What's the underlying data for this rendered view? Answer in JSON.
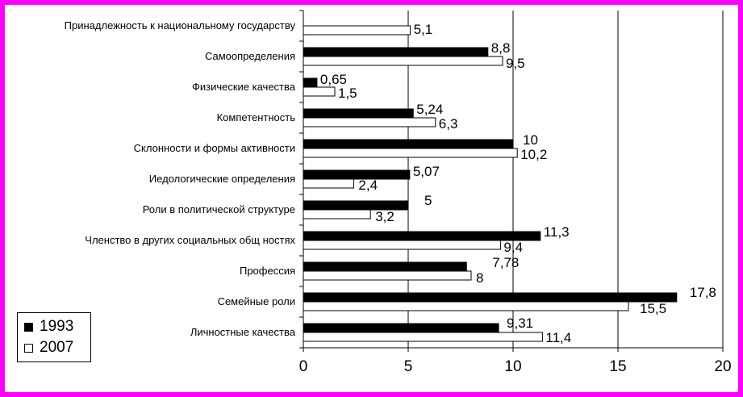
{
  "chart_data": {
    "type": "bar",
    "orientation": "horizontal",
    "categories": [
      "Принадлежность к национальному государству",
      "Самоопределения",
      "Физические качества",
      "Компетентность",
      "Склонности и формы активности",
      "Иедологические определения",
      "Роли в политической структуре",
      "Членство в других социальных общ ностях",
      "Профессия",
      "Семейные роли",
      "Личностные качества"
    ],
    "series": [
      {
        "name": "1993",
        "color": "#000000",
        "values": [
          null,
          8.8,
          0.65,
          5.24,
          10,
          5.07,
          5,
          11.3,
          7.78,
          17.8,
          9.31
        ],
        "labels": [
          "",
          "8,8",
          "0,65",
          "5,24",
          "10",
          "5,07",
          "5",
          "11,3",
          "7,78",
          "17,8",
          "9,31"
        ]
      },
      {
        "name": "2007",
        "color": "#ffffff",
        "values": [
          5.1,
          9.5,
          1.5,
          6.3,
          10.2,
          2.4,
          3.2,
          9.4,
          8,
          15.5,
          11.4
        ],
        "labels": [
          "5,1",
          "9,5",
          "1,5",
          "6,3",
          "10,2",
          "2,4",
          "3,2",
          "9,4",
          "8",
          "15,5",
          "11,4"
        ]
      }
    ],
    "xlim": [
      0,
      20
    ],
    "xticks": [
      0,
      5,
      10,
      15,
      20
    ],
    "xtick_labels": [
      "0",
      "5",
      "10",
      "15",
      "20"
    ],
    "grid": "vertical",
    "legend_position": "bottom-left",
    "title": "",
    "xlabel": "",
    "ylabel": ""
  }
}
